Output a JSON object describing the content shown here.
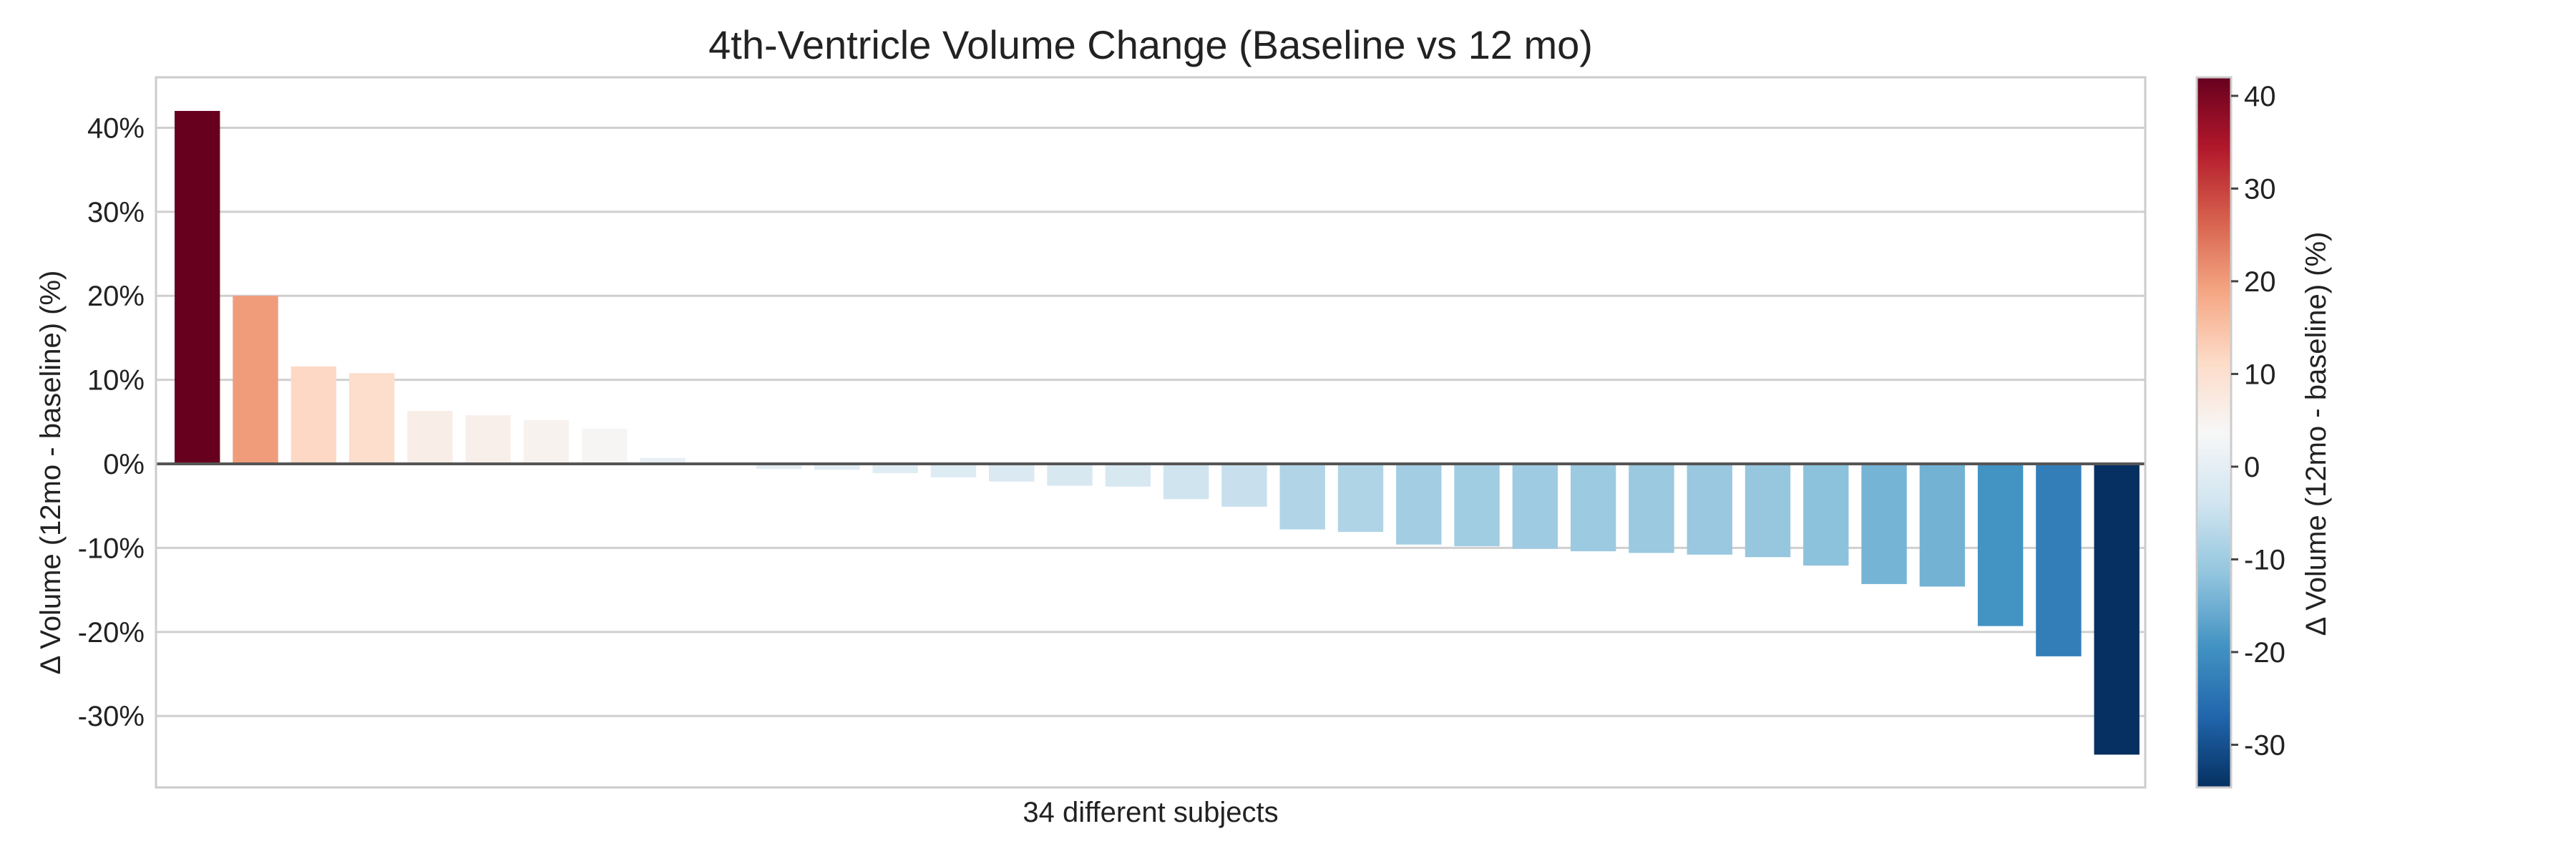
{
  "chart_data": {
    "type": "bar",
    "title": "4th-Ventricle Volume Change (Baseline vs 12 mo)",
    "xlabel": "34 different subjects",
    "ylabel": "Δ Volume (12mo - baseline) (%)",
    "ylim": [
      -38.5,
      46
    ],
    "yticks": [
      {
        "value": 40,
        "label": "40%"
      },
      {
        "value": 30,
        "label": "30%"
      },
      {
        "value": 20,
        "label": "20%"
      },
      {
        "value": 10,
        "label": "10%"
      },
      {
        "value": 0,
        "label": "0%"
      },
      {
        "value": -10,
        "label": "-10%"
      },
      {
        "value": -20,
        "label": "-20%"
      },
      {
        "value": -30,
        "label": "-30%"
      }
    ],
    "grid": true,
    "values": [
      42.0,
      20.0,
      11.6,
      10.8,
      6.3,
      5.8,
      5.2,
      4.2,
      0.7,
      0.1,
      -0.6,
      -0.7,
      -1.1,
      -1.6,
      -2.1,
      -2.6,
      -2.7,
      -4.2,
      -5.1,
      -7.8,
      -8.1,
      -9.6,
      -9.8,
      -10.1,
      -10.4,
      -10.6,
      -10.8,
      -11.1,
      -12.1,
      -14.3,
      -14.6,
      -19.3,
      -22.9,
      -34.6
    ],
    "colorbar": {
      "label": "Δ Volume (12mo - baseline) (%)",
      "range": [
        -34.6,
        42.0
      ],
      "colormap": "RdBu_r",
      "ticks": [
        {
          "value": 40,
          "label": "40"
        },
        {
          "value": 30,
          "label": "30"
        },
        {
          "value": 20,
          "label": "20"
        },
        {
          "value": 10,
          "label": "10"
        },
        {
          "value": 0,
          "label": "0"
        },
        {
          "value": -10,
          "label": "-10"
        },
        {
          "value": -20,
          "label": "-20"
        },
        {
          "value": -30,
          "label": "-30"
        }
      ]
    }
  }
}
